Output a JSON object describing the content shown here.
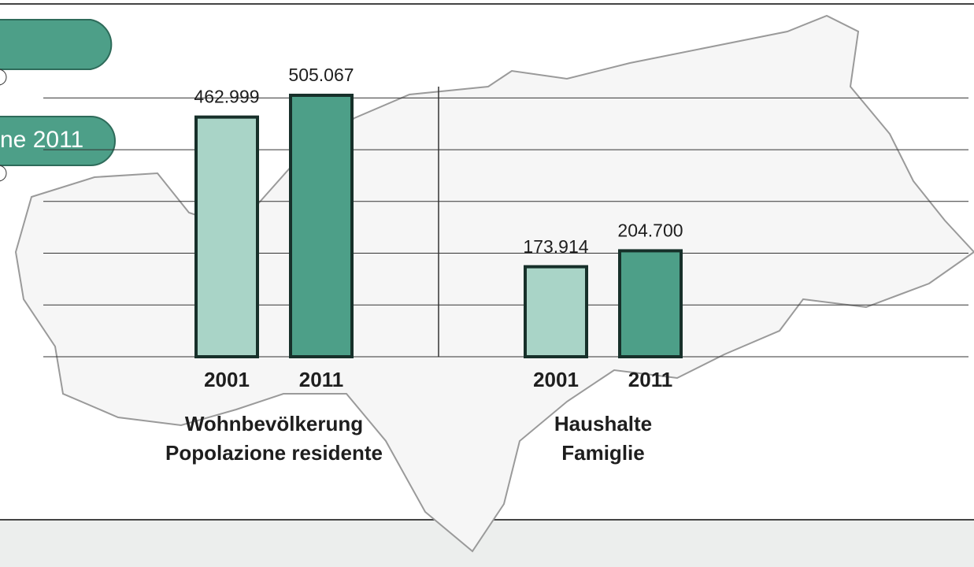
{
  "banner": "ne 2011",
  "chart_data": {
    "type": "bar",
    "categories": [
      [
        "Wohnbevölkerung",
        "Popolazione residente"
      ],
      [
        "Haushalte",
        "Famiglie"
      ]
    ],
    "series": [
      {
        "name": "2001",
        "color": "#a9d4c7",
        "values": [
          462999,
          173914
        ],
        "value_labels": [
          "462.999",
          "173.914"
        ]
      },
      {
        "name": "2011",
        "color": "#4d9f88",
        "values": [
          505067,
          204700
        ],
        "value_labels": [
          "505.067",
          "204.700"
        ]
      }
    ],
    "ylim": [
      0,
      505067
    ],
    "yticks": [
      0,
      100000,
      200000,
      300000,
      400000,
      500000
    ],
    "grid": true
  }
}
